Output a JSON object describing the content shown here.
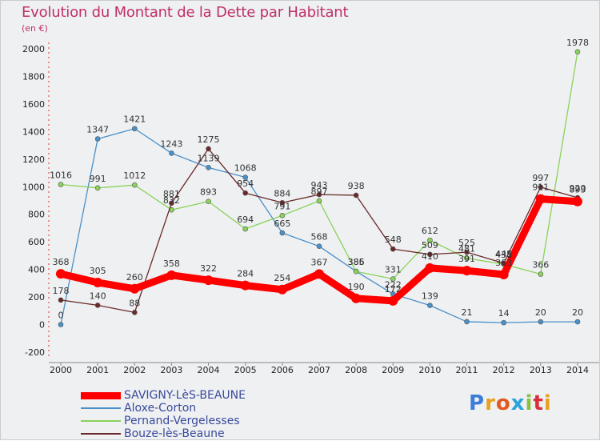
{
  "title": "Evolution du Montant de la Dette par Habitant",
  "subtitle": "(en €)",
  "logo": "Proxiti",
  "chart_data": {
    "type": "line",
    "x": [
      "2000",
      "2001",
      "2002",
      "2003",
      "2004",
      "2005",
      "2006",
      "2007",
      "2008",
      "2009",
      "2010",
      "2011",
      "2012",
      "2013",
      "2014"
    ],
    "ylim": [
      -200,
      2000
    ],
    "yticks": [
      -200,
      0,
      200,
      400,
      600,
      800,
      1000,
      1200,
      1400,
      1600,
      1800,
      2000
    ],
    "grid": false,
    "legend_position": "bottom-left",
    "series": [
      {
        "name": "SAVIGNY-LèS-BEAUNE",
        "color": "#ff0000",
        "values": [
          368,
          305,
          260,
          358,
          322,
          284,
          254,
          367,
          190,
          172,
          410,
          391,
          363,
          911,
          893
        ]
      },
      {
        "name": "Aloxe-Corton",
        "color": "#4a90c8",
        "values": [
          0,
          1347,
          1421,
          1243,
          1139,
          1068,
          665,
          568,
          386,
          222,
          139,
          21,
          14,
          20,
          20
        ]
      },
      {
        "name": "Pernand-Vergelesses",
        "color": "#8bd25a",
        "values": [
          1016,
          991,
          1012,
          832,
          893,
          694,
          791,
          897,
          385,
          331,
          612,
          481,
          438,
          366,
          1978
        ]
      },
      {
        "name": "Bouze-lès-Beaune",
        "color": "#6b2a2a",
        "values": [
          178,
          140,
          88,
          881,
          1275,
          954,
          884,
          943,
          938,
          548,
          509,
          525,
          445,
          997,
          920
        ]
      }
    ]
  }
}
